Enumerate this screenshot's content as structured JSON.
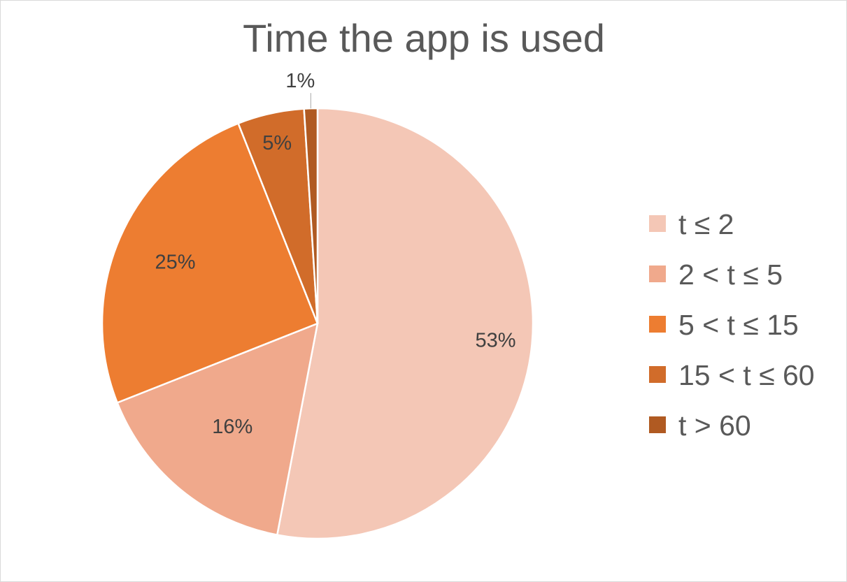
{
  "chart_data": {
    "type": "pie",
    "title": "Time the app is used",
    "legend_position": "right",
    "slices": [
      {
        "label": "t ≤ 2",
        "value": 53,
        "display": "53%",
        "color": "#F4C7B6"
      },
      {
        "label": "2 < t ≤ 5",
        "value": 16,
        "display": "16%",
        "color": "#F0A98C"
      },
      {
        "label": "5 < t ≤ 15",
        "value": 25,
        "display": "25%",
        "color": "#ED7D31"
      },
      {
        "label": "15 < t ≤ 60",
        "value": 5,
        "display": "5%",
        "color": "#D16C2A"
      },
      {
        "label": "t > 60",
        "value": 1,
        "display": "1%",
        "color": "#B05A22"
      }
    ]
  }
}
